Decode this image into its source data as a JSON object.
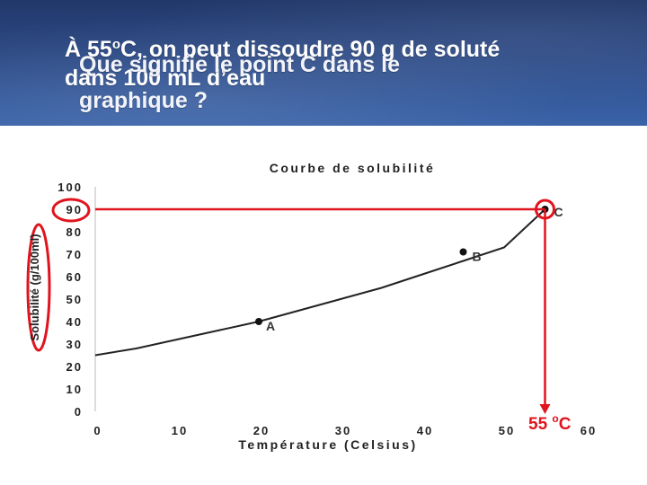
{
  "slide": {
    "answer": {
      "line1_pre": "À 55",
      "line1_sup": "o",
      "line1_post": "C, on peut dissoudre  90 g de soluté",
      "line2": "dans 100 mL d’eau"
    },
    "question": {
      "line1": "Que signifie le point C dans le",
      "line2": "graphique ?"
    },
    "callout": {
      "value": "55 ",
      "sup": "o",
      "unit": "C"
    },
    "colors": {
      "header_bg": "#2c4a86",
      "annotation_red": "#e0141e",
      "curve": "#222222"
    }
  },
  "chart_data": {
    "type": "line",
    "title": "Courbe de solubilité",
    "xlabel": "Température (Celsius)",
    "ylabel": "Solubilité (g/100ml)",
    "xlim": [
      0,
      60
    ],
    "ylim": [
      0,
      100
    ],
    "xticks": [
      0,
      10,
      20,
      30,
      40,
      50,
      60
    ],
    "yticks": [
      0,
      10,
      20,
      30,
      40,
      50,
      60,
      70,
      80,
      90,
      100
    ],
    "series": [
      {
        "x": [
          0,
          5,
          10,
          15,
          20,
          25,
          30,
          35,
          40,
          45,
          50,
          55
        ],
        "y": [
          25,
          28,
          32,
          36,
          40,
          45,
          50,
          55,
          61,
          67,
          73,
          90
        ]
      }
    ],
    "points": [
      {
        "label": "A",
        "x": 20,
        "y": 40
      },
      {
        "label": "B",
        "x": 45,
        "y": 71
      },
      {
        "label": "C",
        "x": 55,
        "y": 90
      }
    ],
    "highlight": {
      "x": 55,
      "y": 90
    }
  }
}
